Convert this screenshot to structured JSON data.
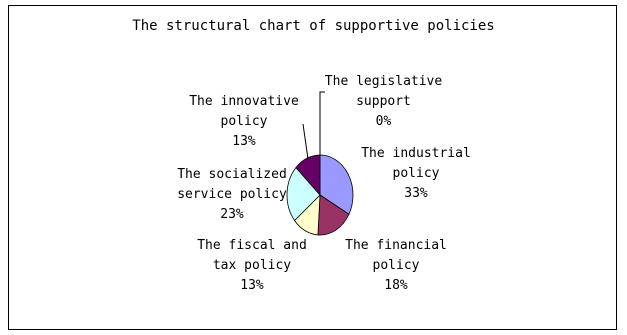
{
  "chart_data": {
    "type": "pie",
    "title": "The structural chart of supportive policies",
    "slices": [
      {
        "label_lines": [
          "The industrial",
          "policy"
        ],
        "value": 33,
        "value_label": "33%",
        "color": "#9999ff"
      },
      {
        "label_lines": [
          "The financial",
          "policy"
        ],
        "value": 18,
        "value_label": "18%",
        "color": "#993366"
      },
      {
        "label_lines": [
          "The fiscal and",
          "tax policy"
        ],
        "value": 13,
        "value_label": "13%",
        "color": "#ffffcc"
      },
      {
        "label_lines": [
          "The socialized",
          "service policy"
        ],
        "value": 23,
        "value_label": "23%",
        "color": "#ccffff"
      },
      {
        "label_lines": [
          "The innovative",
          "policy"
        ],
        "value": 13,
        "value_label": "13%",
        "color": "#660066"
      },
      {
        "label_lines": [
          "The legislative",
          "support"
        ],
        "value": 0,
        "value_label": "0%",
        "color": "#ff8080"
      }
    ],
    "legend": "none"
  }
}
